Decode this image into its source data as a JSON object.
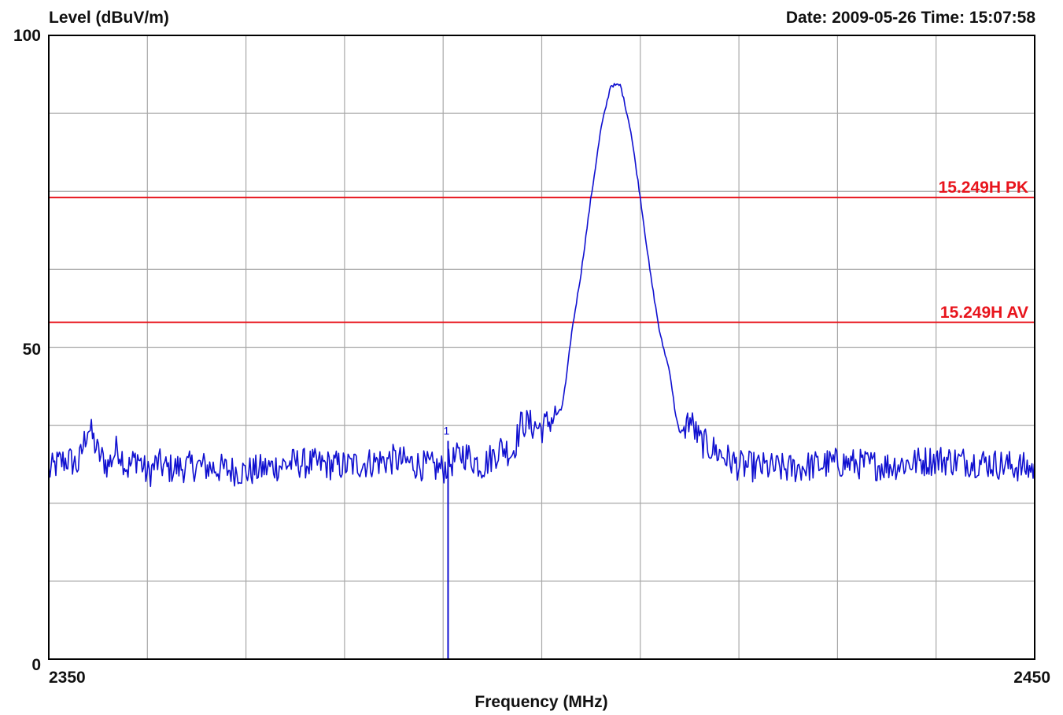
{
  "chart_data": {
    "type": "line",
    "ylabel": "Level (dBuV/m)",
    "xlabel": "Frequency (MHz)",
    "header_right": "Date: 2009-05-26  Time: 15:07:58",
    "xlim": [
      2350,
      2450
    ],
    "ylim": [
      0,
      100
    ],
    "x_tick_labels": [
      "2350",
      "2450"
    ],
    "y_tick_labels": [
      "100",
      "50",
      "0"
    ],
    "grid": true,
    "x_grid_step": 10,
    "y_grid_step": 12.5,
    "limit_lines": [
      {
        "label": "15.249H PK",
        "value": 74,
        "color": "#e8141c"
      },
      {
        "label": "15.249H AV",
        "value": 54,
        "color": "#e8141c"
      }
    ],
    "marker": {
      "label": "1",
      "x": 2390.5
    },
    "series": [
      {
        "color": "#1010d0",
        "noise_floor": 31,
        "points": [
          [
            2350,
            30
          ],
          [
            2351,
            31.5
          ],
          [
            2352,
            32
          ],
          [
            2353,
            31
          ],
          [
            2354,
            37.5
          ],
          [
            2355,
            33
          ],
          [
            2356,
            31
          ],
          [
            2357,
            34
          ],
          [
            2358,
            30.5
          ],
          [
            2359,
            32.5
          ],
          [
            2360,
            29.5
          ],
          [
            2361,
            31.5
          ],
          [
            2362,
            30.5
          ],
          [
            2365,
            31
          ],
          [
            2370,
            30
          ],
          [
            2375,
            31.5
          ],
          [
            2380,
            31
          ],
          [
            2385,
            32
          ],
          [
            2388,
            31
          ],
          [
            2390,
            30.5
          ],
          [
            2392,
            33
          ],
          [
            2394,
            31
          ],
          [
            2396,
            34
          ],
          [
            2397,
            33
          ],
          [
            2398,
            38
          ],
          [
            2399,
            37.5
          ],
          [
            2400,
            37
          ],
          [
            2401,
            38.5
          ],
          [
            2402,
            40
          ],
          [
            2402.5,
            45
          ],
          [
            2403,
            52
          ],
          [
            2404,
            62
          ],
          [
            2405,
            74
          ],
          [
            2406,
            85
          ],
          [
            2407,
            92
          ],
          [
            2408,
            92
          ],
          [
            2409,
            85
          ],
          [
            2410,
            74
          ],
          [
            2411,
            62
          ],
          [
            2412,
            52
          ],
          [
            2413,
            46
          ],
          [
            2413.5,
            40
          ],
          [
            2414,
            36
          ],
          [
            2415,
            38.5
          ],
          [
            2416,
            35
          ],
          [
            2418,
            33
          ],
          [
            2420,
            31
          ],
          [
            2425,
            30.5
          ],
          [
            2430,
            31.5
          ],
          [
            2435,
            31
          ],
          [
            2440,
            32
          ],
          [
            2445,
            31.5
          ],
          [
            2450,
            30.5
          ]
        ]
      }
    ]
  }
}
